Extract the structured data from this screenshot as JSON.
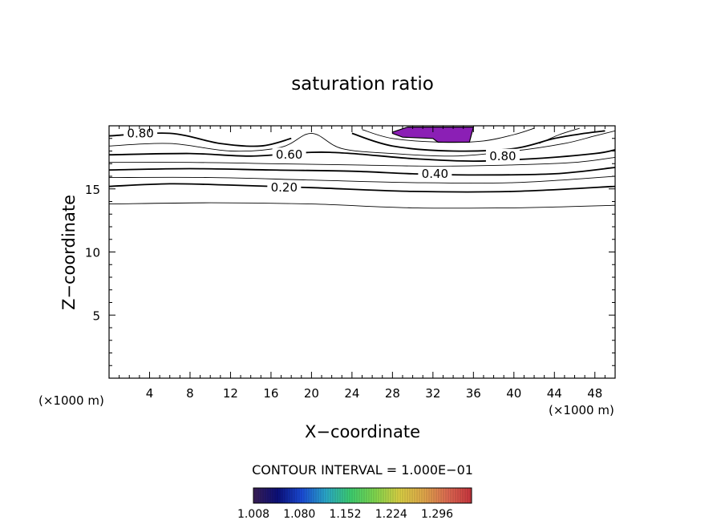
{
  "chart_data": {
    "type": "contour",
    "title": "saturation ratio",
    "xlabel": "X−coordinate",
    "ylabel": "Z−coordinate",
    "x_unit_left": "(×1000 m)",
    "x_unit_right": "(×1000 m)",
    "xlim": [
      0,
      50
    ],
    "ylim": [
      0,
      20
    ],
    "x_ticks": [
      4,
      8,
      12,
      16,
      20,
      24,
      28,
      32,
      36,
      40,
      44,
      48
    ],
    "y_ticks": [
      5,
      10,
      15
    ],
    "contour_interval_text": "CONTOUR INTERVAL = 1.000E−01",
    "contour_levels": [
      {
        "level": 0.1,
        "points": [
          [
            0,
            13.8
          ],
          [
            10,
            13.9
          ],
          [
            20,
            13.8
          ],
          [
            30,
            13.5
          ],
          [
            40,
            13.5
          ],
          [
            50,
            13.7
          ]
        ]
      },
      {
        "level": 0.2,
        "label": "0.20",
        "label_at": [
          17.3,
          15.1
        ],
        "points": [
          [
            0,
            15.2
          ],
          [
            6,
            15.4
          ],
          [
            12,
            15.3
          ],
          [
            20,
            15.1
          ],
          [
            30,
            14.8
          ],
          [
            40,
            14.8
          ],
          [
            50,
            15.2
          ]
        ]
      },
      {
        "level": 0.3,
        "points": [
          [
            0,
            15.9
          ],
          [
            10,
            15.9
          ],
          [
            20,
            15.7
          ],
          [
            30,
            15.5
          ],
          [
            40,
            15.5
          ],
          [
            50,
            16.0
          ]
        ]
      },
      {
        "level": 0.4,
        "label": "0.40",
        "label_at": [
          32.2,
          16.2
        ],
        "points": [
          [
            0,
            16.5
          ],
          [
            8,
            16.6
          ],
          [
            16,
            16.5
          ],
          [
            24,
            16.4
          ],
          [
            30,
            16.2
          ],
          [
            36,
            16.1
          ],
          [
            44,
            16.2
          ],
          [
            50,
            16.7
          ]
        ]
      },
      {
        "level": 0.5,
        "points": [
          [
            0,
            17.1
          ],
          [
            8,
            17.1
          ],
          [
            16,
            17.0
          ],
          [
            24,
            16.9
          ],
          [
            32,
            16.8
          ],
          [
            40,
            16.9
          ],
          [
            46,
            17.1
          ],
          [
            50,
            17.5
          ]
        ]
      },
      {
        "level": 0.6,
        "label": "0.60",
        "label_at": [
          17.8,
          17.7
        ],
        "points": [
          [
            0,
            17.7
          ],
          [
            8,
            17.8
          ],
          [
            14,
            17.6
          ],
          [
            20,
            17.9
          ],
          [
            24,
            17.8
          ],
          [
            30,
            17.4
          ],
          [
            36,
            17.2
          ],
          [
            42,
            17.4
          ],
          [
            48,
            17.8
          ],
          [
            50,
            18.1
          ]
        ]
      },
      {
        "level": 0.7,
        "points": [
          [
            0,
            18.4
          ],
          [
            6,
            18.6
          ],
          [
            12,
            18.0
          ],
          [
            17,
            18.3
          ],
          [
            20,
            19.4
          ],
          [
            23,
            18.2
          ],
          [
            28,
            17.8
          ],
          [
            34,
            17.6
          ],
          [
            40,
            18.0
          ],
          [
            45,
            18.6
          ],
          [
            48,
            19.2
          ],
          [
            50,
            19.6
          ]
        ]
      },
      {
        "level": 0.8,
        "label": "0.80",
        "label_at": [
          3.1,
          19.4
        ],
        "points": [
          [
            0,
            19.2
          ],
          [
            6,
            19.4
          ],
          [
            11,
            18.6
          ],
          [
            15,
            18.4
          ],
          [
            18,
            19.0
          ]
        ]
      },
      {
        "level": 0.8,
        "label": "0.80",
        "label_at": [
          38.9,
          17.6
        ],
        "points": [
          [
            24,
            19.4
          ],
          [
            28,
            18.4
          ],
          [
            34,
            18.0
          ],
          [
            40,
            18.2
          ],
          [
            44,
            19.0
          ],
          [
            47,
            19.4
          ],
          [
            49,
            19.6
          ]
        ]
      },
      {
        "level": 0.9,
        "points": [
          [
            25,
            19.7
          ],
          [
            28,
            19.0
          ],
          [
            33,
            18.7
          ],
          [
            37,
            18.8
          ],
          [
            40,
            19.3
          ],
          [
            42,
            19.8
          ]
        ]
      },
      {
        "level": 0.9,
        "points": [
          [
            42.5,
            18.6
          ],
          [
            44.5,
            19.3
          ],
          [
            46.5,
            19.8
          ]
        ]
      }
    ],
    "shaded_regions": [
      {
        "range": "1.008–1.080",
        "color": "#8b1fb5",
        "points": [
          [
            28,
            19.5
          ],
          [
            29.5,
            19.9
          ],
          [
            36,
            19.9
          ],
          [
            35.6,
            18.7
          ],
          [
            32.5,
            18.7
          ],
          [
            32,
            19.0
          ],
          [
            29,
            19.1
          ],
          [
            28,
            19.4
          ]
        ]
      }
    ],
    "colorbar": {
      "min": 1.008,
      "max": 1.35,
      "labels": [
        "1.008",
        "1.080",
        "1.152",
        "1.224",
        "1.296"
      ],
      "stops": [
        "#3a1f56",
        "#0b0f7a",
        "#1a4bd6",
        "#2aa8c8",
        "#3ccd70",
        "#7fd64e",
        "#d8d044",
        "#e0a84a",
        "#dd6a52",
        "#c8343d"
      ]
    }
  }
}
